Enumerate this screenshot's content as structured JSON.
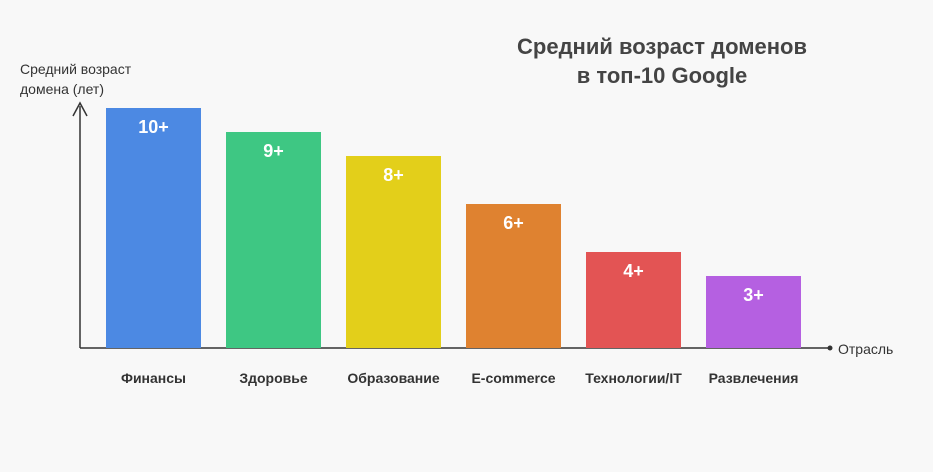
{
  "chart_data": {
    "type": "bar",
    "title_lines": [
      "Средний возраст доменов",
      "в топ-10 Google"
    ],
    "ylabel_lines": [
      "Средний возраст",
      "домена (лет)"
    ],
    "xlabel": "Отрасль",
    "categories": [
      "Финансы",
      "Здоровье",
      "Образование",
      "E-commerce",
      "Технологии/IT",
      "Развлечения"
    ],
    "values": [
      10,
      9,
      8,
      6,
      4,
      3
    ],
    "value_labels": [
      "10+",
      "9+",
      "8+",
      "6+",
      "4+",
      "3+"
    ],
    "colors": [
      "#4c89e3",
      "#3ec783",
      "#e3cf1a",
      "#df8230",
      "#e35454",
      "#b560e1"
    ],
    "ylim": [
      0,
      10
    ],
    "grid": false,
    "legend": "none"
  }
}
